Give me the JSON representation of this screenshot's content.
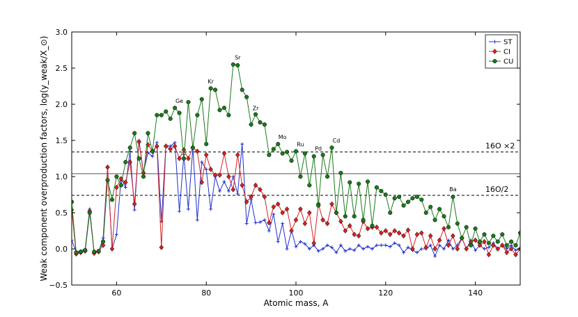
{
  "chart_data": {
    "type": "line",
    "xlabel": "Atomic mass, A",
    "ylabel": "Weak component overproduction factors, log(y_weak/X_⊙)",
    "xlim": [
      50,
      150
    ],
    "ylim": [
      -0.5,
      3.0
    ],
    "xticks": [
      60,
      80,
      100,
      120,
      140
    ],
    "xtick_labels": [
      "60",
      "80",
      "100",
      "120",
      "140"
    ],
    "yticks": [
      -0.5,
      0.0,
      0.5,
      1.0,
      1.5,
      2.0,
      2.5,
      3.0
    ],
    "ytick_labels": [
      "−0.5",
      "0.0",
      "0.5",
      "1.0",
      "1.5",
      "2.0",
      "2.5",
      "3.0"
    ],
    "legend_position": "top-right",
    "reference_lines": [
      {
        "label": "16O ×2",
        "y": 1.34,
        "style": "dashed"
      },
      {
        "label": "",
        "y": 1.04,
        "style": "solid"
      },
      {
        "label": "16O/2",
        "y": 0.74,
        "style": "dashed"
      }
    ],
    "element_labels": [
      {
        "text": "Ge",
        "x": 74,
        "y": 2.02
      },
      {
        "text": "Kr",
        "x": 81,
        "y": 2.29
      },
      {
        "text": "Sr",
        "x": 87,
        "y": 2.62
      },
      {
        "text": "Zr",
        "x": 91,
        "y": 1.92
      },
      {
        "text": "Mo",
        "x": 97,
        "y": 1.52
      },
      {
        "text": "Ru",
        "x": 101,
        "y": 1.42
      },
      {
        "text": "Pd",
        "x": 105,
        "y": 1.36
      },
      {
        "text": "Cd",
        "x": 109,
        "y": 1.47
      },
      {
        "text": "Ba",
        "x": 135,
        "y": 0.8
      }
    ],
    "series": [
      {
        "name": "ST",
        "color": "#1f2ecc",
        "marker": "plus",
        "x": [
          50,
          51,
          52,
          53,
          54,
          55,
          56,
          57,
          58,
          59,
          60,
          61,
          62,
          63,
          64,
          65,
          66,
          67,
          68,
          69,
          70,
          71,
          72,
          73,
          74,
          75,
          76,
          77,
          78,
          79,
          80,
          81,
          82,
          83,
          84,
          85,
          86,
          87,
          88,
          89,
          90,
          91,
          92,
          93,
          94,
          95,
          96,
          97,
          98,
          99,
          100,
          101,
          102,
          103,
          104,
          105,
          106,
          107,
          108,
          109,
          110,
          111,
          112,
          113,
          114,
          115,
          116,
          117,
          118,
          119,
          120,
          121,
          122,
          123,
          124,
          125,
          126,
          127,
          128,
          129,
          130,
          131,
          132,
          133,
          134,
          135,
          136,
          137,
          138,
          139,
          140,
          141,
          142,
          143,
          144,
          145,
          146,
          147,
          148,
          149,
          150
        ],
        "y": [
          0.12,
          -0.04,
          -0.03,
          0.0,
          0.55,
          -0.05,
          -0.04,
          0.15,
          1.12,
          0.0,
          0.2,
          0.98,
          0.85,
          1.35,
          0.54,
          1.5,
          1.06,
          1.33,
          1.28,
          1.47,
          0.38,
          1.43,
          1.42,
          1.47,
          0.52,
          1.3,
          0.55,
          1.4,
          0.4,
          1.2,
          1.1,
          0.55,
          1.0,
          0.8,
          0.93,
          0.8,
          1.0,
          0.76,
          1.45,
          0.35,
          0.68,
          0.36,
          0.37,
          0.4,
          0.25,
          0.48,
          0.1,
          0.35,
          0.0,
          0.25,
          0.03,
          0.1,
          0.07,
          0.0,
          0.05,
          -0.03,
          0.0,
          0.05,
          0.02,
          -0.05,
          0.05,
          -0.03,
          0.0,
          -0.02,
          0.05,
          0.0,
          0.03,
          0.0,
          0.05,
          0.05,
          0.05,
          0.03,
          0.08,
          0.05,
          -0.05,
          0.02,
          -0.02,
          -0.05,
          0.0,
          0.0,
          0.05,
          -0.1,
          0.05,
          0.0,
          0.12,
          0.0,
          0.05,
          0.15,
          0.0,
          0.12,
          -0.02,
          0.05,
          0.0,
          0.02,
          0.08,
          0.0,
          0.05,
          0.0,
          0.05,
          -0.02,
          0.0
        ]
      },
      {
        "name": "CI",
        "color": "#d62020",
        "marker": "diamond",
        "x": [
          50,
          51,
          52,
          53,
          54,
          55,
          56,
          57,
          58,
          59,
          60,
          61,
          62,
          63,
          64,
          65,
          66,
          67,
          68,
          69,
          70,
          71,
          72,
          73,
          74,
          75,
          76,
          77,
          78,
          79,
          80,
          81,
          82,
          83,
          84,
          85,
          86,
          87,
          88,
          89,
          90,
          91,
          92,
          93,
          94,
          95,
          96,
          97,
          98,
          99,
          100,
          101,
          102,
          103,
          104,
          105,
          106,
          107,
          108,
          109,
          110,
          111,
          112,
          113,
          114,
          115,
          116,
          117,
          118,
          119,
          120,
          121,
          122,
          123,
          124,
          125,
          126,
          127,
          128,
          129,
          130,
          131,
          132,
          133,
          134,
          135,
          136,
          137,
          138,
          139,
          140,
          141,
          142,
          143,
          144,
          145,
          146,
          147,
          148,
          149,
          150
        ],
        "y": [
          0.54,
          -0.07,
          -0.05,
          -0.03,
          0.52,
          -0.06,
          -0.04,
          0.05,
          1.13,
          0.0,
          0.85,
          0.97,
          0.92,
          1.2,
          0.62,
          1.48,
          1.05,
          1.44,
          1.35,
          1.42,
          0.02,
          1.42,
          1.38,
          1.42,
          1.25,
          1.37,
          1.25,
          1.4,
          1.35,
          0.92,
          1.3,
          1.1,
          1.02,
          1.02,
          1.32,
          1.0,
          0.82,
          1.3,
          0.88,
          0.65,
          0.72,
          0.88,
          0.82,
          0.72,
          0.36,
          0.58,
          0.62,
          0.5,
          0.55,
          0.25,
          0.4,
          0.55,
          0.35,
          0.5,
          0.08,
          0.62,
          0.4,
          0.35,
          0.62,
          0.5,
          0.38,
          0.25,
          0.32,
          0.2,
          0.18,
          0.38,
          0.28,
          0.3,
          0.3,
          0.22,
          0.25,
          0.2,
          0.25,
          0.22,
          0.18,
          0.26,
          0.0,
          0.2,
          0.22,
          0.02,
          0.18,
          0.0,
          0.12,
          0.28,
          0.05,
          0.18,
          0.0,
          0.15,
          0.0,
          0.1,
          0.12,
          0.05,
          0.1,
          -0.08,
          0.05,
          0.0,
          0.05,
          -0.05,
          0.0,
          -0.08,
          0.0
        ]
      },
      {
        "name": "CU",
        "color": "#1a7a1a",
        "marker": "circle",
        "x": [
          50,
          51,
          52,
          53,
          54,
          55,
          56,
          57,
          58,
          59,
          60,
          61,
          62,
          63,
          64,
          65,
          66,
          67,
          68,
          69,
          70,
          71,
          72,
          73,
          74,
          75,
          76,
          77,
          78,
          79,
          80,
          81,
          82,
          83,
          84,
          85,
          86,
          87,
          88,
          89,
          90,
          91,
          92,
          93,
          94,
          95,
          96,
          97,
          98,
          99,
          100,
          101,
          102,
          103,
          104,
          105,
          106,
          107,
          108,
          109,
          110,
          111,
          112,
          113,
          114,
          115,
          116,
          117,
          118,
          119,
          120,
          121,
          122,
          123,
          124,
          125,
          126,
          127,
          128,
          129,
          130,
          131,
          132,
          133,
          134,
          135,
          136,
          137,
          138,
          139,
          140,
          141,
          142,
          143,
          144,
          145,
          146,
          147,
          148,
          149,
          150
        ],
        "y": [
          0.65,
          -0.05,
          -0.04,
          -0.02,
          0.5,
          -0.04,
          -0.03,
          0.1,
          0.95,
          0.68,
          1.0,
          0.88,
          1.2,
          1.4,
          1.6,
          1.25,
          1.0,
          1.6,
          1.35,
          1.85,
          1.85,
          1.9,
          1.8,
          1.95,
          1.88,
          1.25,
          2.03,
          1.4,
          1.85,
          2.07,
          1.45,
          2.22,
          2.2,
          1.92,
          1.95,
          1.85,
          2.55,
          2.54,
          2.2,
          2.1,
          1.72,
          1.86,
          1.75,
          1.72,
          1.3,
          1.38,
          1.45,
          1.32,
          1.34,
          1.22,
          1.35,
          1.0,
          1.32,
          0.88,
          1.28,
          0.6,
          1.3,
          1.0,
          1.4,
          0.5,
          1.05,
          0.45,
          0.92,
          0.45,
          0.9,
          0.4,
          0.93,
          0.32,
          0.85,
          0.8,
          0.75,
          0.5,
          0.7,
          0.72,
          0.6,
          0.65,
          0.7,
          0.72,
          0.68,
          0.5,
          0.58,
          0.4,
          0.55,
          0.45,
          0.3,
          0.72,
          0.35,
          0.15,
          0.3,
          0.05,
          0.28,
          0.1,
          0.2,
          0.08,
          0.18,
          0.1,
          0.2,
          0.05,
          0.1,
          0.05,
          0.22
        ]
      }
    ]
  }
}
